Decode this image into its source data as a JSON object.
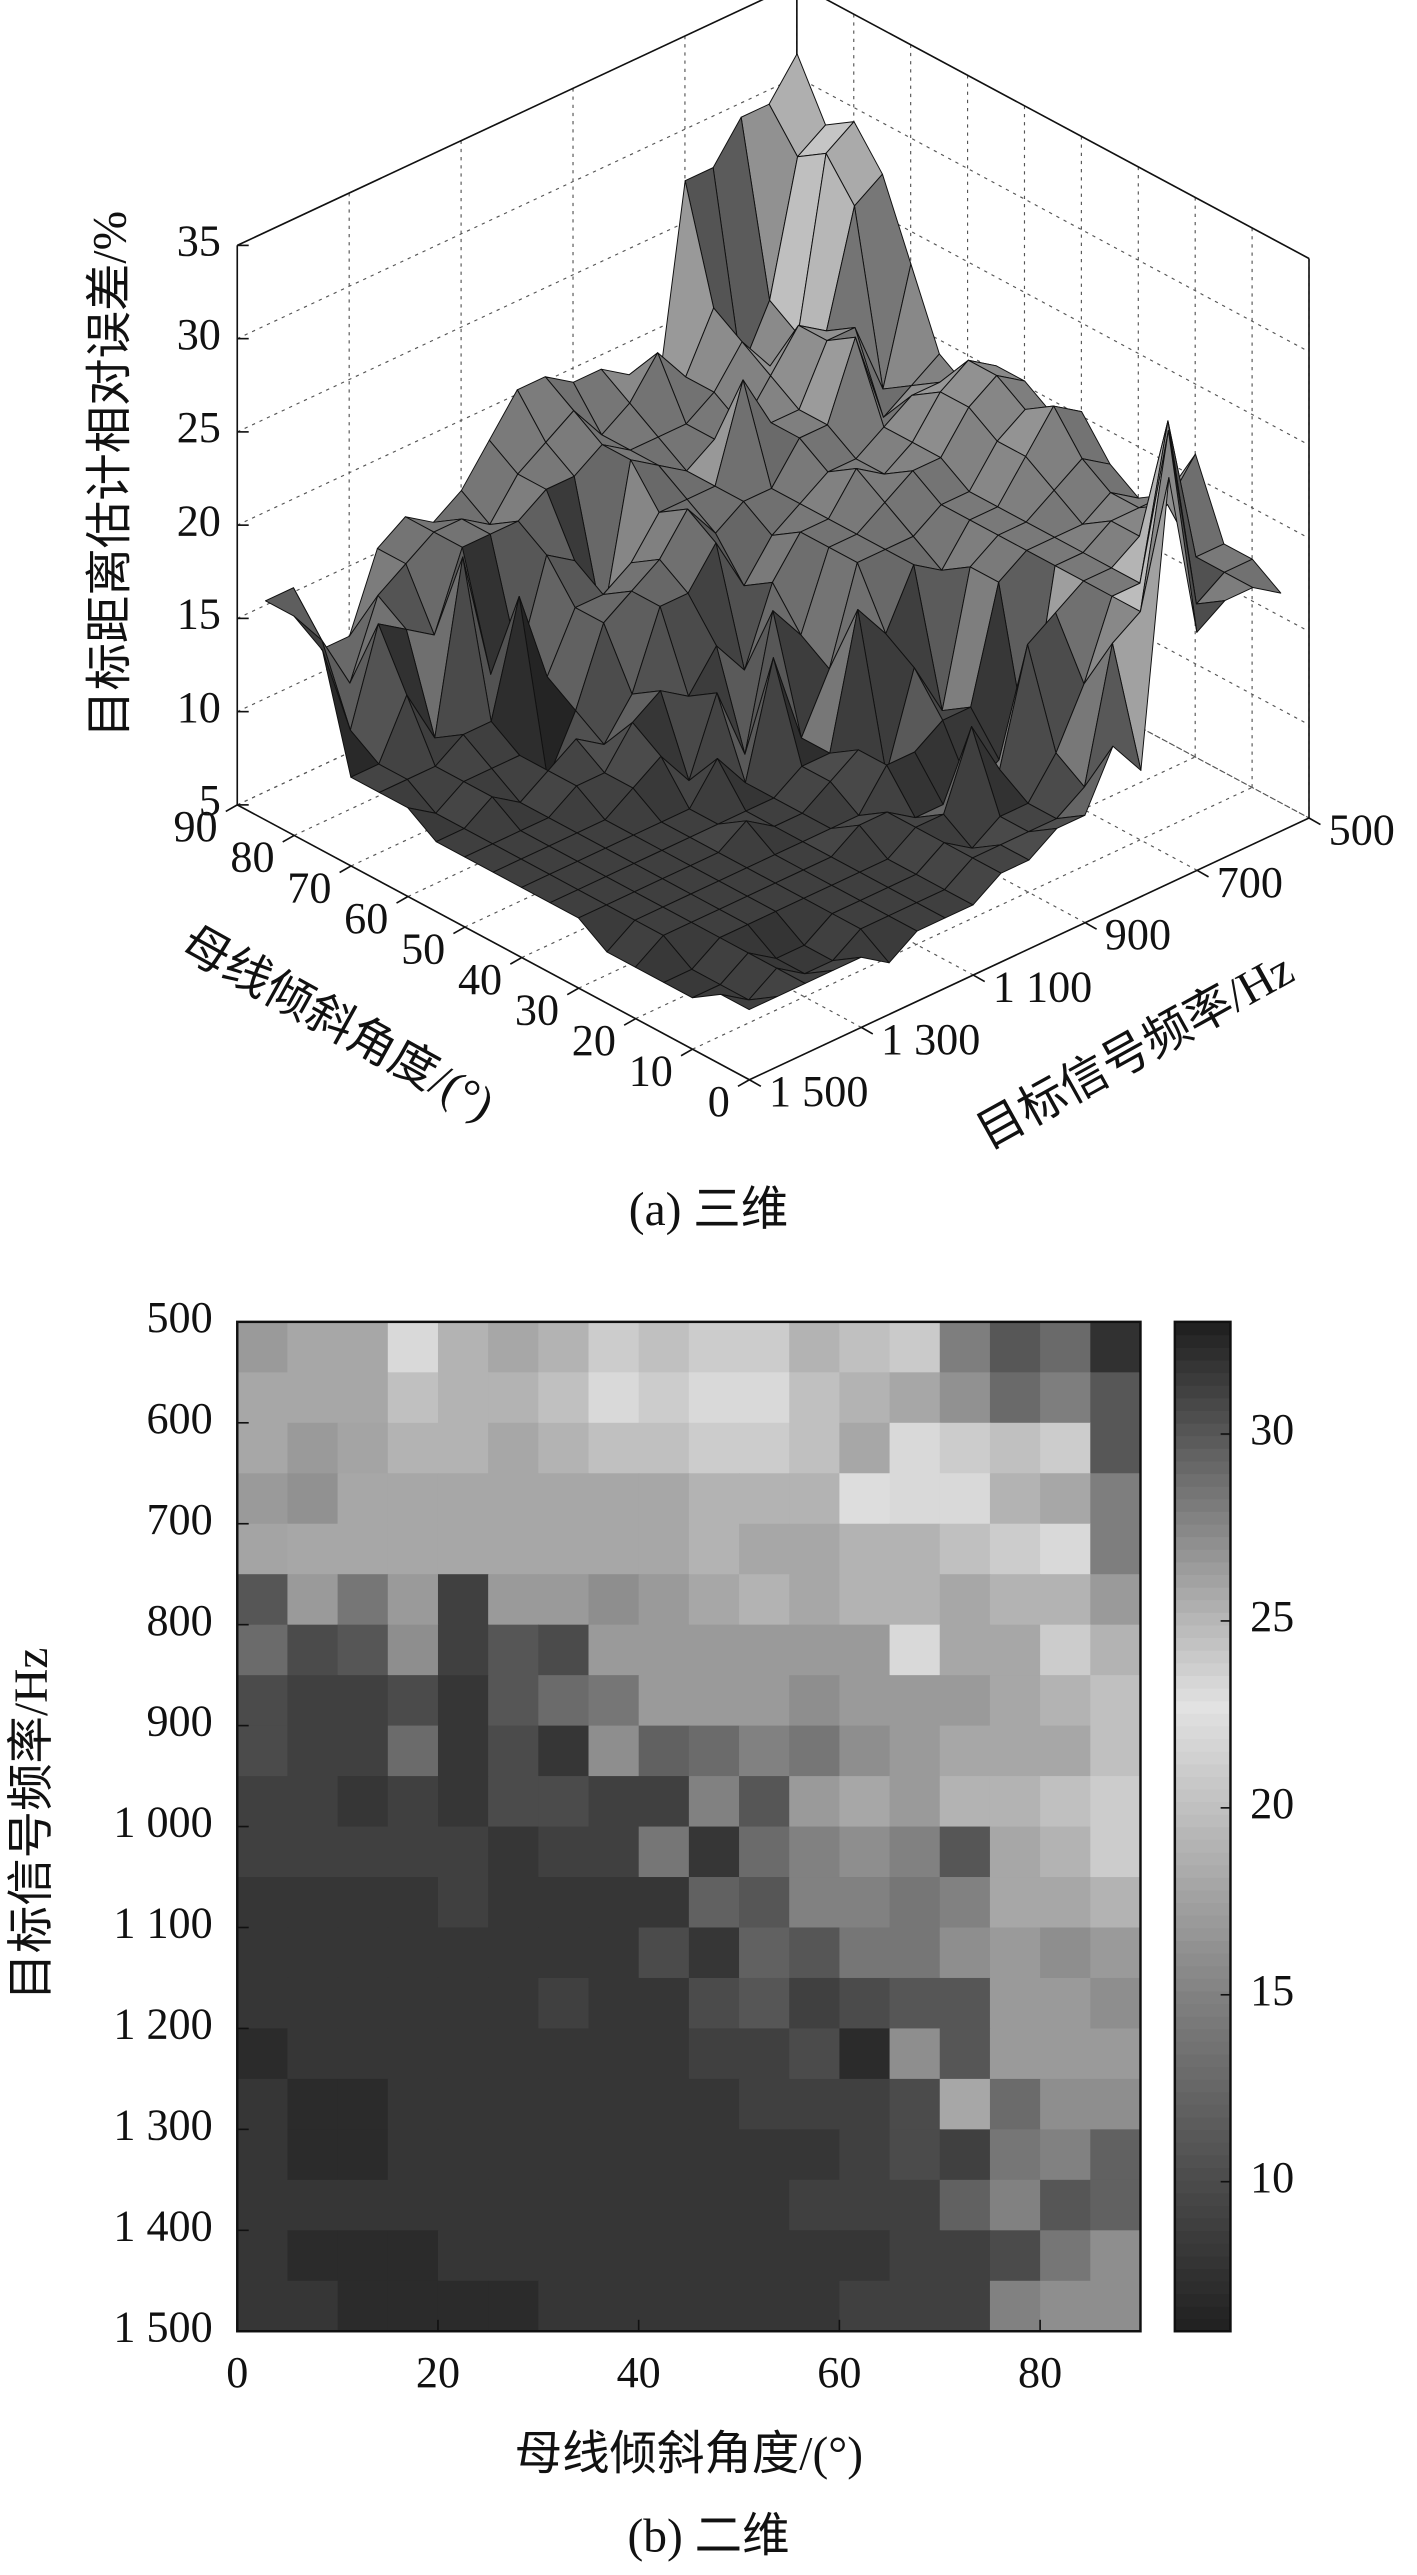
{
  "chart_data": [
    {
      "type": "surface3d",
      "caption": "(a) 三维",
      "zlabel": "目标距离估计相对误差/%",
      "xlabel": "母线倾斜角度/(°)",
      "ylabel": "目标信号频率/Hz",
      "xlim": [
        0,
        90
      ],
      "ylim": [
        500,
        1500
      ],
      "zlim": [
        5,
        35
      ],
      "xticks": [
        0,
        10,
        20,
        30,
        40,
        50,
        60,
        70,
        80,
        90
      ],
      "yticks": [
        500,
        700,
        900,
        {
          "value": 1100,
          "label": "1 100"
        },
        {
          "value": 1300,
          "label": "1 300"
        },
        {
          "value": 1500,
          "label": "1 500"
        }
      ],
      "zticks": [
        5,
        10,
        15,
        20,
        25,
        30,
        35
      ],
      "grid": true
    },
    {
      "type": "heatmap",
      "caption": "(b) 二维",
      "xlabel": "母线倾斜角度/(°)",
      "ylabel": "目标信号频率/Hz",
      "xlim": [
        0,
        90
      ],
      "ylim": [
        500,
        1500
      ],
      "y_inverted": true,
      "clim": [
        6,
        33
      ],
      "xticks": [
        0,
        20,
        40,
        60,
        80
      ],
      "yticks": [
        500,
        600,
        700,
        800,
        900,
        {
          "value": 1000,
          "label": "1 000"
        },
        {
          "value": 1100,
          "label": "1 100"
        },
        {
          "value": 1200,
          "label": "1 200"
        },
        {
          "value": 1300,
          "label": "1 300"
        },
        {
          "value": 1400,
          "label": "1 400"
        },
        {
          "value": 1500,
          "label": "1 500"
        }
      ],
      "colorbar_ticks": [
        10,
        15,
        20,
        25,
        30
      ],
      "x_edges": [
        0,
        5,
        10,
        15,
        20,
        25,
        30,
        35,
        40,
        45,
        50,
        55,
        60,
        65,
        70,
        75,
        80,
        85,
        90
      ],
      "y_edges": [
        500,
        550,
        600,
        650,
        700,
        750,
        800,
        850,
        900,
        950,
        1000,
        1050,
        1100,
        1150,
        1200,
        1250,
        1300,
        1350,
        1400,
        1450,
        1500
      ],
      "z": [
        [
          17,
          18,
          18,
          22,
          19,
          18,
          19,
          21,
          20,
          21,
          21,
          19,
          20,
          24,
          28,
          30,
          29,
          32
        ],
        [
          18,
          18,
          18,
          20,
          19,
          19,
          20,
          22,
          21,
          22,
          22,
          20,
          19,
          18,
          27,
          29,
          28,
          30
        ],
        [
          18,
          17,
          26,
          19,
          19,
          18,
          19,
          20,
          20,
          21,
          21,
          20,
          18,
          22,
          21,
          20,
          21,
          30
        ],
        [
          17,
          27,
          18,
          18,
          18,
          18,
          18,
          18,
          18,
          19,
          19,
          19,
          23,
          22,
          22,
          19,
          18,
          28
        ],
        [
          26,
          18,
          18,
          18,
          18,
          18,
          18,
          18,
          18,
          19,
          18,
          18,
          19,
          19,
          20,
          21,
          22,
          28
        ],
        [
          11,
          17,
          14,
          17,
          9,
          17,
          17,
          16,
          17,
          18,
          19,
          18,
          19,
          19,
          18,
          19,
          19,
          17
        ],
        [
          13,
          10,
          11,
          16,
          9,
          11,
          10,
          17,
          17,
          17,
          17,
          17,
          17,
          22,
          18,
          18,
          21,
          19
        ],
        [
          10,
          9,
          9,
          10,
          8,
          11,
          13,
          14,
          17,
          17,
          17,
          16,
          17,
          17,
          17,
          18,
          19,
          20
        ],
        [
          10,
          9,
          9,
          13,
          8,
          10,
          8,
          16,
          12,
          13,
          15,
          14,
          16,
          17,
          18,
          18,
          18,
          20
        ],
        [
          9,
          9,
          8,
          9,
          8,
          10,
          10,
          9,
          9,
          15,
          11,
          17,
          18,
          17,
          19,
          19,
          20,
          21
        ],
        [
          9,
          9,
          9,
          9,
          9,
          8,
          9,
          9,
          14,
          8,
          13,
          15,
          16,
          15,
          11,
          18,
          19,
          21
        ],
        [
          8,
          8,
          8,
          8,
          9,
          8,
          8,
          8,
          8,
          12,
          11,
          15,
          15,
          14,
          15,
          18,
          18,
          19
        ],
        [
          8,
          8,
          8,
          8,
          8,
          8,
          8,
          8,
          10,
          8,
          12,
          11,
          14,
          14,
          16,
          17,
          16,
          17
        ],
        [
          8,
          8,
          8,
          8,
          8,
          8,
          9,
          8,
          8,
          10,
          11,
          9,
          10,
          11,
          11,
          17,
          17,
          16
        ],
        [
          7,
          8,
          8,
          8,
          8,
          8,
          8,
          8,
          8,
          9,
          9,
          10,
          7,
          16,
          11,
          17,
          17,
          17
        ],
        [
          8,
          7,
          7,
          8,
          8,
          8,
          8,
          8,
          8,
          8,
          9,
          9,
          9,
          10,
          18,
          13,
          16,
          16
        ],
        [
          8,
          7,
          7,
          8,
          8,
          8,
          8,
          8,
          8,
          8,
          8,
          8,
          9,
          10,
          9,
          14,
          15,
          12
        ],
        [
          8,
          8,
          8,
          8,
          8,
          8,
          8,
          8,
          8,
          8,
          8,
          9,
          9,
          9,
          12,
          15,
          11,
          12
        ],
        [
          8,
          7,
          7,
          7,
          8,
          8,
          8,
          8,
          8,
          8,
          8,
          8,
          8,
          9,
          9,
          10,
          14,
          16
        ],
        [
          8,
          8,
          7,
          7,
          7,
          7,
          8,
          8,
          8,
          8,
          8,
          8,
          9,
          9,
          9,
          15,
          16,
          16
        ]
      ]
    }
  ]
}
